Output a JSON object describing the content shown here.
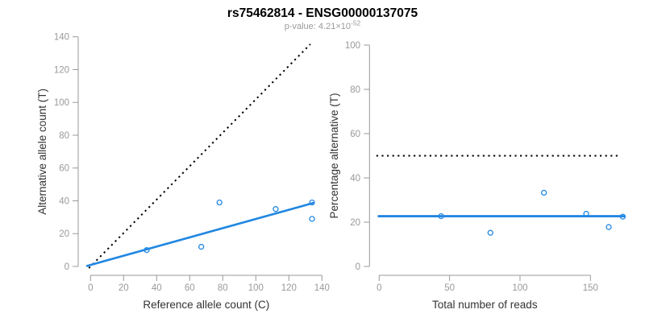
{
  "header": {
    "title": "rs75462814 - ENSG00000137075",
    "subtitle_main": "p-value: 4.21×10",
    "subtitle_exponent": "-52"
  },
  "colors": {
    "accent_blue": "#2287E2",
    "line_black": "#000000",
    "axis_gray": "#999999",
    "tick_label_gray": "#999999",
    "axis_title_dark": "#333333",
    "subtitle_gray": "#9a9a9a"
  },
  "chart_data": [
    {
      "type": "scatter",
      "panel": "left",
      "xlabel": "Reference allele count (C)",
      "ylabel": "Alternative allele count (T)",
      "xlim": [
        0,
        140
      ],
      "ylim": [
        0,
        140
      ],
      "xticks": [
        0,
        20,
        40,
        60,
        80,
        100,
        120,
        140
      ],
      "yticks": [
        0,
        20,
        40,
        60,
        80,
        100,
        120,
        140
      ],
      "marker": "open-circle",
      "points": [
        {
          "x": 34,
          "y": 10
        },
        {
          "x": 67,
          "y": 12
        },
        {
          "x": 78,
          "y": 39
        },
        {
          "x": 112,
          "y": 35
        },
        {
          "x": 134,
          "y": 29
        },
        {
          "x": 134,
          "y": 39
        }
      ],
      "lines": [
        {
          "name": "identity-line",
          "style": "dotted",
          "color": "#000000",
          "width": 2,
          "points": [
            [
              -1,
              -1
            ],
            [
              133,
              135.5
            ]
          ]
        },
        {
          "name": "fit-line",
          "style": "solid",
          "color": "#2287E2",
          "width": 2.6,
          "points": [
            [
              -2.6,
              0.2
            ],
            [
              135.2,
              38.8
            ]
          ]
        }
      ]
    },
    {
      "type": "scatter",
      "panel": "right",
      "xlabel": "Total number of reads",
      "ylabel": "Percentage alternative (T)",
      "xlim": [
        0,
        175
      ],
      "ylim": [
        0,
        100
      ],
      "xticks": [
        0,
        50,
        100,
        150
      ],
      "yticks": [
        0,
        20,
        40,
        60,
        80,
        100
      ],
      "marker": "open-circle",
      "points": [
        {
          "x": 44,
          "y": 22.7
        },
        {
          "x": 79,
          "y": 15.2
        },
        {
          "x": 117,
          "y": 33.3
        },
        {
          "x": 147,
          "y": 23.8
        },
        {
          "x": 163,
          "y": 17.8
        },
        {
          "x": 173,
          "y": 22.5
        }
      ],
      "lines": [
        {
          "name": "fifty-percent-reference-line",
          "style": "dotted",
          "color": "#000000",
          "width": 2,
          "points": [
            [
              -2,
              50
            ],
            [
              170,
              50
            ]
          ]
        },
        {
          "name": "mean-percentage-line",
          "style": "solid",
          "color": "#2287E2",
          "width": 2.8,
          "points": [
            [
              -1,
              22.7
            ],
            [
              174.5,
              22.7
            ]
          ]
        }
      ]
    }
  ]
}
